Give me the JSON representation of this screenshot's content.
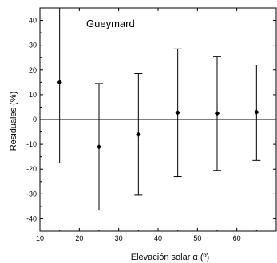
{
  "chart_data": {
    "type": "scatter",
    "title": "",
    "annotation": "Gueymard",
    "xlabel": "Elevación solar α (º)",
    "ylabel": "Residuales (%)",
    "xlim": [
      10,
      70
    ],
    "ylim": [
      -45,
      45
    ],
    "x_ticks": [
      10,
      20,
      30,
      40,
      50,
      60
    ],
    "y_ticks": [
      -40,
      -30,
      -20,
      -10,
      0,
      10,
      20,
      30,
      40
    ],
    "grid": false,
    "zero_line": true,
    "points": [
      {
        "x": 15,
        "y": 15,
        "err_low": -17.5,
        "err_high": 45
      },
      {
        "x": 25,
        "y": -11,
        "err_low": -36.5,
        "err_high": 14.5
      },
      {
        "x": 35,
        "y": -6,
        "err_low": -30.5,
        "err_high": 18.5
      },
      {
        "x": 45,
        "y": 2.8,
        "err_low": -23,
        "err_high": 28.5
      },
      {
        "x": 55,
        "y": 2.5,
        "err_low": -20.5,
        "err_high": 25.5
      },
      {
        "x": 65,
        "y": 3,
        "err_low": -16.5,
        "err_high": 22
      }
    ]
  }
}
